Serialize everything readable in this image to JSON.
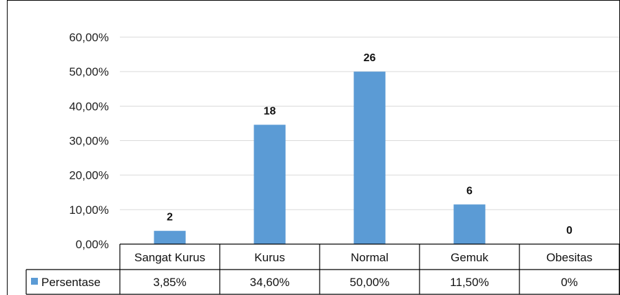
{
  "chart_data": {
    "type": "bar",
    "title": "",
    "xlabel": "",
    "ylabel": "",
    "ylim": [
      0,
      60
    ],
    "y_ticks": [
      "0,00%",
      "10,00%",
      "20,00%",
      "30,00%",
      "40,00%",
      "50,00%",
      "60,00%"
    ],
    "grid": true,
    "legend": "data-table",
    "categories": [
      "Sangat Kurus",
      "Kurus",
      "Normal",
      "Gemuk",
      "Obesitas"
    ],
    "series": [
      {
        "name": "Persentase",
        "values": [
          3.85,
          34.6,
          50.0,
          11.5,
          0
        ],
        "table_labels": [
          "3,85%",
          "34,60%",
          "50,00%",
          "11,50%",
          "0%"
        ],
        "data_labels": [
          "2",
          "18",
          "26",
          "6",
          "0"
        ],
        "color": "#5b9bd5"
      }
    ]
  }
}
